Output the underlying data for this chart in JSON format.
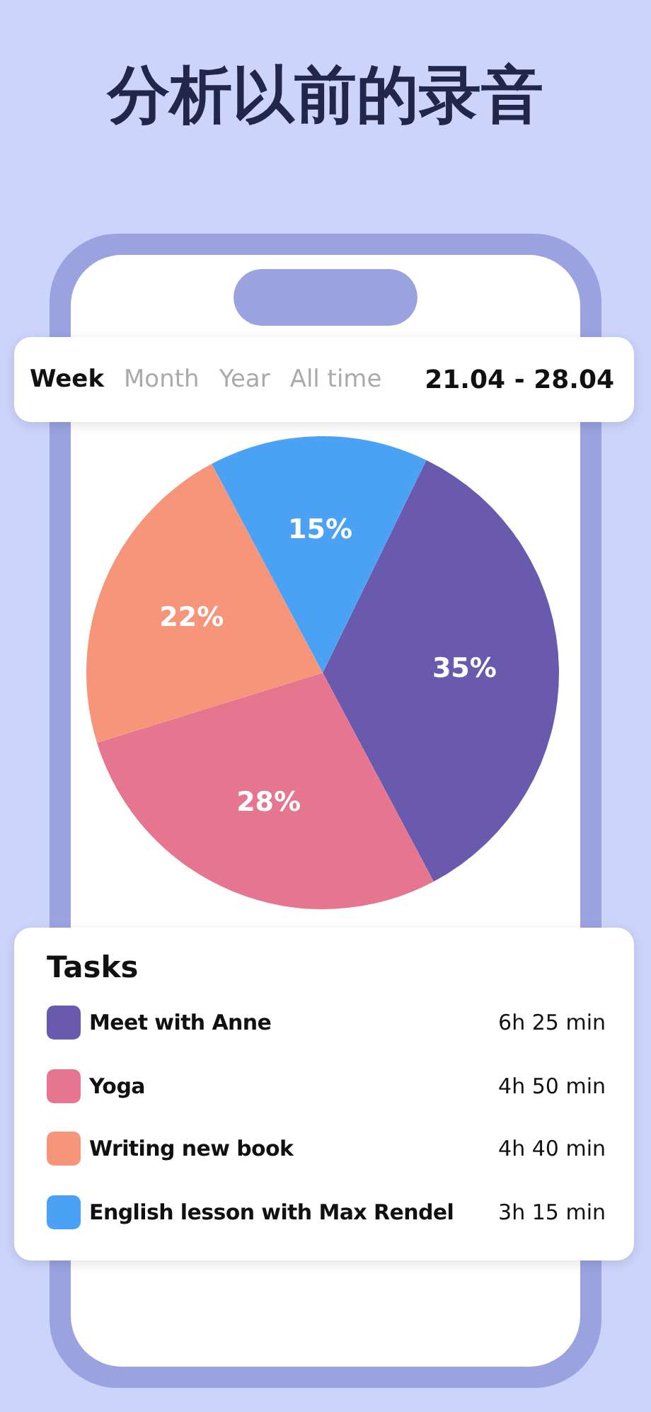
{
  "chart_data": {
    "type": "pie",
    "title": "分析以前的录音",
    "legend_title": "Tasks",
    "categories": [
      "Meet with Anne",
      "Yoga",
      "Writing new book",
      "English lesson with Max Rendel"
    ],
    "values": [
      35,
      28,
      22,
      15
    ],
    "colors": [
      "#6a5aad",
      "#e6758f",
      "#f6957a",
      "#4ba2f4"
    ],
    "value_labels": [
      "35%",
      "28%",
      "22%",
      "15%"
    ],
    "legend": "bottom",
    "annotations": [
      "Week",
      "Month",
      "Year",
      "All time",
      "21.04 - 28.04",
      "6h 25 min",
      "4h 50 min",
      "4h 40 min",
      "3h 15 min"
    ]
  }
}
